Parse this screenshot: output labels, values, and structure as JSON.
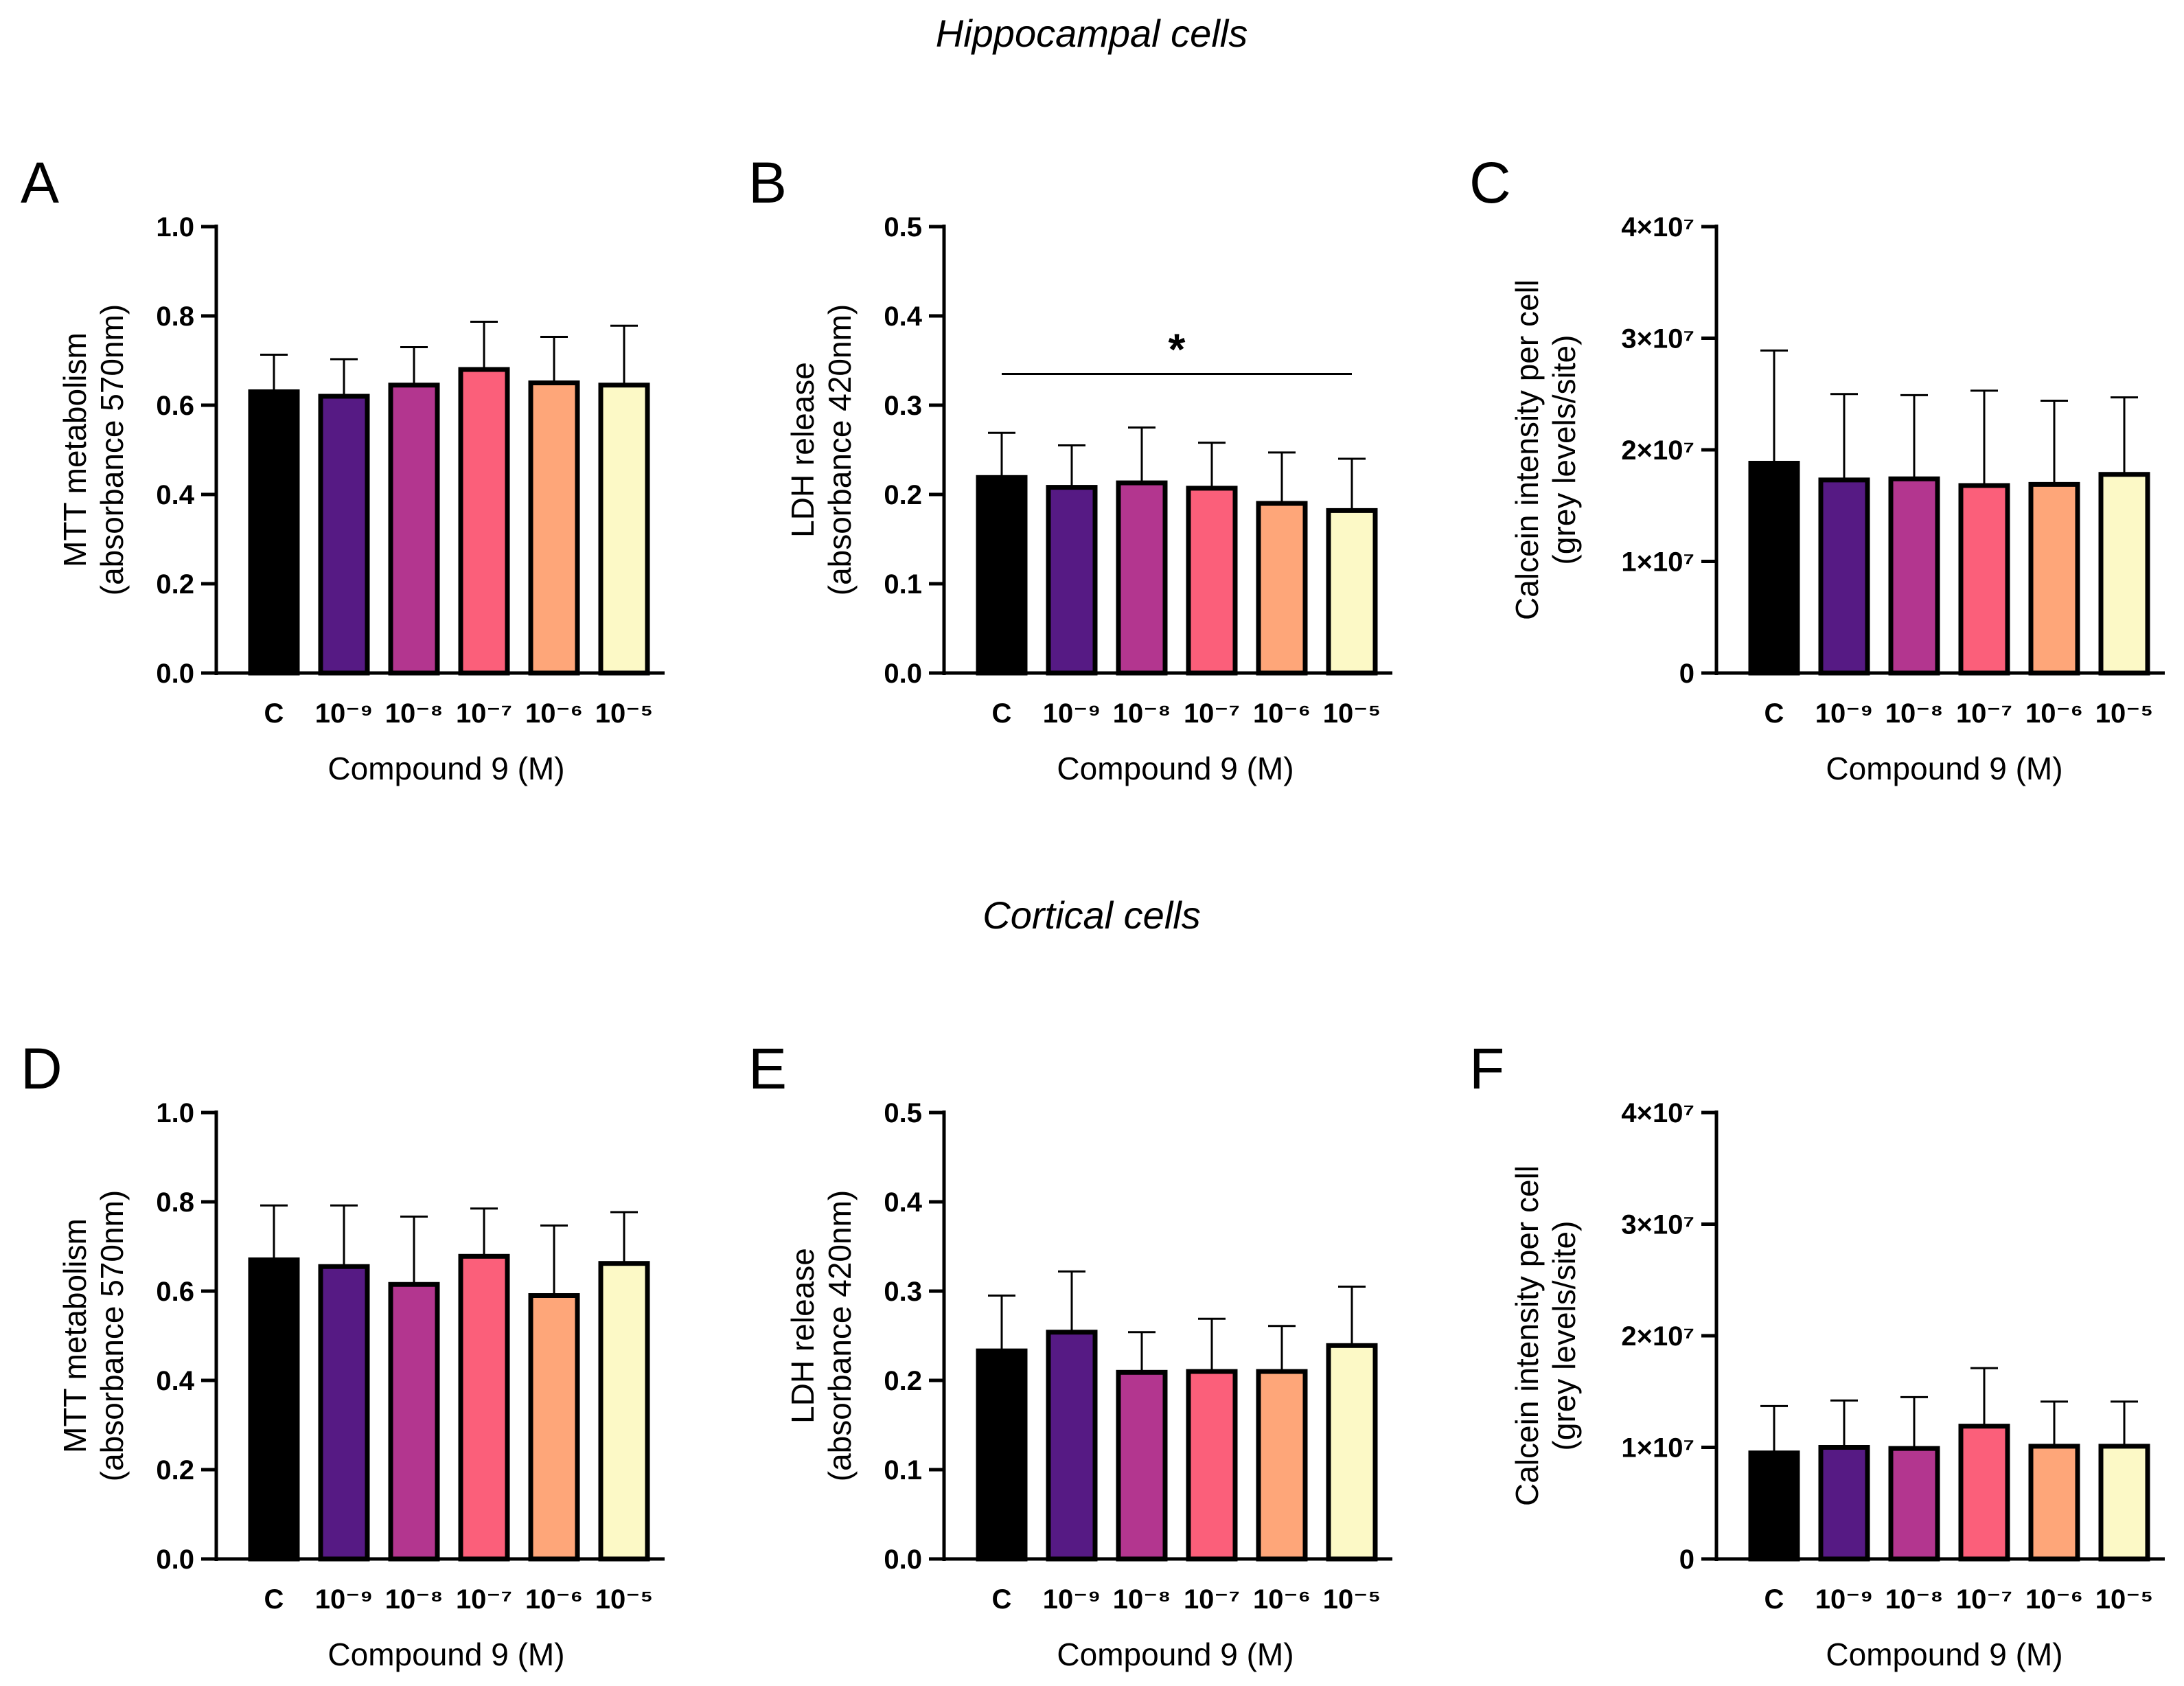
{
  "sections": [
    {
      "title": "Hippocampal cells"
    },
    {
      "title": "Cortical cells"
    }
  ],
  "bar_colors": [
    "#000000",
    "#561a84",
    "#b3368f",
    "#fb5f7a",
    "#fea679",
    "#fcf9c6"
  ],
  "chart_data": [
    {
      "panel": "A",
      "type": "bar",
      "section": "Hippocampal cells",
      "categories": [
        "C",
        "10⁻⁹",
        "10⁻⁸",
        "10⁻⁷",
        "10⁻⁶",
        "10⁻⁵"
      ],
      "values": [
        0.63,
        0.62,
        0.645,
        0.68,
        0.65,
        0.645
      ],
      "errors": [
        0.083,
        0.083,
        0.085,
        0.107,
        0.103,
        0.133
      ],
      "xlabel": "Compound 9 (M)",
      "ylabel": [
        "MTT metabolism",
        "(absorbance 570nm)"
      ],
      "ylim": [
        0,
        1.0
      ],
      "yticks": [
        "0.0",
        "0.2",
        "0.4",
        "0.6",
        "0.8",
        "1.0"
      ]
    },
    {
      "panel": "B",
      "type": "bar",
      "section": "Hippocampal cells",
      "categories": [
        "C",
        "10⁻⁹",
        "10⁻⁸",
        "10⁻⁷",
        "10⁻⁶",
        "10⁻⁵"
      ],
      "values": [
        0.219,
        0.208,
        0.213,
        0.207,
        0.19,
        0.182
      ],
      "errors": [
        0.05,
        0.047,
        0.062,
        0.051,
        0.057,
        0.058
      ],
      "xlabel": "Compound 9 (M)",
      "ylabel": [
        "LDH release",
        "(absorbance 420nm)"
      ],
      "ylim": [
        0,
        0.5
      ],
      "yticks": [
        "0.0",
        "0.1",
        "0.2",
        "0.3",
        "0.4",
        "0.5"
      ],
      "significance": {
        "label": "*",
        "from": "C",
        "to": "10⁻⁵",
        "y": 0.335
      }
    },
    {
      "panel": "C",
      "type": "bar",
      "section": "Hippocampal cells",
      "categories": [
        "C",
        "10⁻⁹",
        "10⁻⁸",
        "10⁻⁷",
        "10⁻⁶",
        "10⁻⁵"
      ],
      "values": [
        18800000,
        17300000,
        17400000,
        16800000,
        16900000,
        17800000
      ],
      "errors": [
        10100000,
        7700000,
        7500000,
        8500000,
        7500000,
        6900000
      ],
      "xlabel": "Compound 9 (M)",
      "ylabel": [
        "Calcein intensity per cell",
        "(grey levels/site)"
      ],
      "ylim": [
        0,
        40000000
      ],
      "yticks": [
        "0",
        "1×10⁷",
        "2×10⁷",
        "3×10⁷",
        "4×10⁷"
      ]
    },
    {
      "panel": "D",
      "type": "bar",
      "section": "Cortical cells",
      "categories": [
        "C",
        "10⁻⁹",
        "10⁻⁸",
        "10⁻⁷",
        "10⁻⁶",
        "10⁻⁵"
      ],
      "values": [
        0.67,
        0.655,
        0.615,
        0.678,
        0.59,
        0.662
      ],
      "errors": [
        0.122,
        0.137,
        0.152,
        0.107,
        0.157,
        0.115
      ],
      "xlabel": "Compound 9 (M)",
      "ylabel": [
        "MTT metabolism",
        "(absorbance 570nm)"
      ],
      "ylim": [
        0,
        1.0
      ],
      "yticks": [
        "0.0",
        "0.2",
        "0.4",
        "0.6",
        "0.8",
        "1.0"
      ]
    },
    {
      "panel": "E",
      "type": "bar",
      "section": "Cortical cells",
      "categories": [
        "C",
        "10⁻⁹",
        "10⁻⁸",
        "10⁻⁷",
        "10⁻⁶",
        "10⁻⁵"
      ],
      "values": [
        0.233,
        0.254,
        0.209,
        0.21,
        0.21,
        0.239
      ],
      "errors": [
        0.062,
        0.068,
        0.045,
        0.059,
        0.051,
        0.066
      ],
      "xlabel": "Compound 9 (M)",
      "ylabel": [
        "LDH release",
        "(absorbance 420nm)"
      ],
      "ylim": [
        0,
        0.5
      ],
      "yticks": [
        "0.0",
        "0.1",
        "0.2",
        "0.3",
        "0.4",
        "0.5"
      ]
    },
    {
      "panel": "F",
      "type": "bar",
      "section": "Cortical cells",
      "categories": [
        "C",
        "10⁻⁹",
        "10⁻⁸",
        "10⁻⁷",
        "10⁻⁶",
        "10⁻⁵"
      ],
      "values": [
        9500000,
        10000000,
        9900000,
        11900000,
        10100000,
        10100000
      ],
      "errors": [
        4200000,
        4200000,
        4600000,
        5200000,
        4000000,
        4000000
      ],
      "xlabel": "Compound 9 (M)",
      "ylabel": [
        "Calcein intensity per cell",
        "(grey levels/site)"
      ],
      "ylim": [
        0,
        40000000
      ],
      "yticks": [
        "0",
        "1×10⁷",
        "2×10⁷",
        "3×10⁷",
        "4×10⁷"
      ]
    }
  ]
}
